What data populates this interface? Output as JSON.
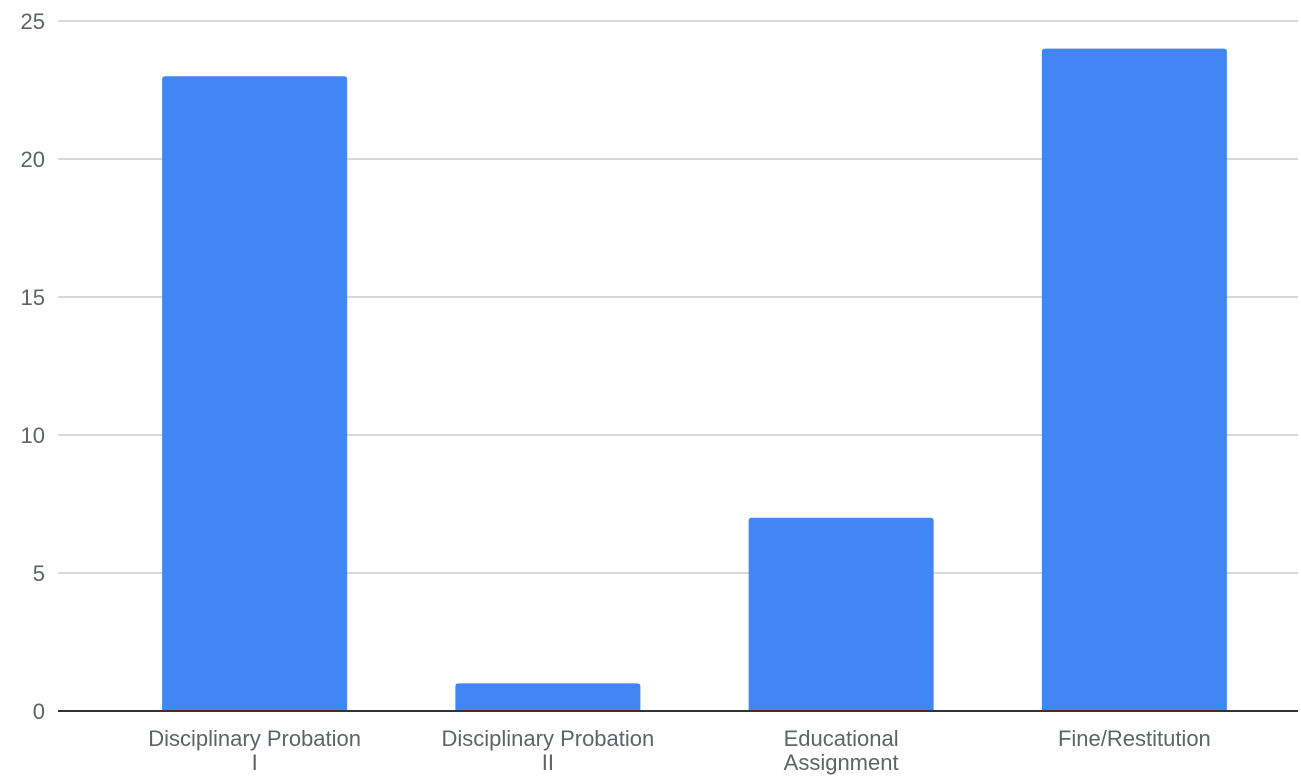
{
  "chart_data": {
    "type": "bar",
    "categories": [
      [
        "Disciplinary Probation",
        "I"
      ],
      [
        "Disciplinary Probation",
        "II"
      ],
      [
        "Educational",
        "Assignment"
      ],
      [
        "Fine/Restitution"
      ]
    ],
    "values": [
      23,
      1,
      7,
      24
    ],
    "title": "",
    "xlabel": "",
    "ylabel": "",
    "ylim": [
      0,
      25
    ],
    "yticks": [
      "0",
      "5",
      "10",
      "15",
      "20",
      "25"
    ],
    "grid": true,
    "legend": "none",
    "colors": {
      "bar": "#4285f4",
      "grid": "#cccccc",
      "axis": "#333333",
      "text": "#5f6368"
    }
  }
}
